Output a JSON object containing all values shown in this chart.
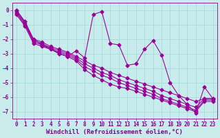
{
  "title": "",
  "xlabel": "Windchill (Refroidissement éolien,°C)",
  "ylabel": "",
  "bg_color": "#c8ecec",
  "line_color": "#990099",
  "grid_color": "#aadddd",
  "xlim": [
    -0.5,
    23.5
  ],
  "ylim": [
    -7.5,
    0.5
  ],
  "yticks": [
    0,
    -1,
    -2,
    -3,
    -4,
    -5,
    -6,
    -7
  ],
  "xticks": [
    0,
    1,
    2,
    3,
    4,
    5,
    6,
    7,
    8,
    9,
    10,
    11,
    12,
    13,
    14,
    15,
    16,
    17,
    18,
    19,
    20,
    21,
    22,
    23
  ],
  "series": [
    [
      0.0,
      -0.8,
      -2.0,
      -2.2,
      -2.5,
      -2.7,
      -2.9,
      -3.2,
      -3.5,
      -3.8,
      -4.0,
      -4.3,
      -4.5,
      -4.7,
      -4.9,
      -5.1,
      -5.3,
      -5.5,
      -5.7,
      -5.9,
      -6.1,
      -6.3,
      -6.1,
      -6.1
    ],
    [
      -0.1,
      -0.9,
      -2.1,
      -2.3,
      -2.6,
      -2.8,
      -3.0,
      -3.3,
      -3.7,
      -4.0,
      -4.3,
      -4.5,
      -4.8,
      -5.0,
      -5.2,
      -5.4,
      -5.6,
      -5.9,
      -6.1,
      -6.3,
      -6.5,
      -6.7,
      -6.1,
      -6.1
    ],
    [
      -0.2,
      -1.0,
      -2.2,
      -2.4,
      -2.7,
      -2.9,
      -3.1,
      -3.4,
      -3.9,
      -4.2,
      -4.5,
      -4.7,
      -5.0,
      -5.2,
      -5.4,
      -5.6,
      -5.8,
      -6.1,
      -6.3,
      -6.5,
      -6.7,
      -6.9,
      -6.2,
      -6.2
    ],
    [
      -0.3,
      -1.1,
      -2.3,
      -2.5,
      -2.7,
      -3.0,
      -3.2,
      -3.5,
      -4.1,
      -4.5,
      -4.8,
      -5.1,
      -5.3,
      -5.4,
      -5.6,
      -5.8,
      -6.0,
      -6.2,
      -6.4,
      -6.6,
      -6.8,
      -7.0,
      -6.3,
      -6.3
    ],
    [
      0.0,
      -0.8,
      -2.0,
      -2.4,
      -2.6,
      -3.0,
      -3.2,
      -2.8,
      -3.3,
      -0.3,
      -0.1,
      -2.3,
      -2.4,
      -3.8,
      -3.7,
      -2.7,
      -2.1,
      -3.1,
      -5.0,
      -5.9,
      -6.5,
      -7.1,
      -5.3,
      -6.1
    ]
  ],
  "marker": "D",
  "markersize": 2.5,
  "linewidth": 0.8,
  "xlabel_fontsize": 6.5,
  "tick_fontsize": 5.5,
  "label_color": "#880088"
}
